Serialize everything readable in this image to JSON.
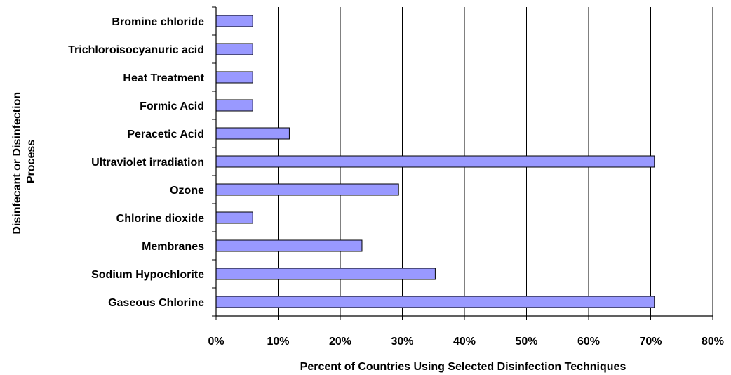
{
  "chart_data": {
    "type": "bar",
    "orientation": "horizontal",
    "categories": [
      "Gaseous Chlorine",
      "Sodium Hypochlorite",
      "Membranes",
      "Chlorine dioxide",
      "Ozone",
      "Ultraviolet irradiation",
      "Peracetic Acid",
      "Formic Acid",
      "Heat Treatment",
      "Trichloroisocyanuric acid",
      "Bromine chloride"
    ],
    "values": [
      70.6,
      35.3,
      23.5,
      5.9,
      29.4,
      70.6,
      11.8,
      5.9,
      5.9,
      5.9,
      5.9
    ],
    "xlabel": "Percent of Countries Using Selected Disinfection Techniques",
    "ylabel": "Disinfecant or Disinfection Process",
    "xlim": [
      0,
      80
    ],
    "x_ticks": [
      "0%",
      "10%",
      "20%",
      "30%",
      "40%",
      "50%",
      "60%",
      "70%",
      "80%"
    ],
    "grid": "vertical",
    "bar_color": "#9999ff",
    "bar_outline": "#000000"
  }
}
